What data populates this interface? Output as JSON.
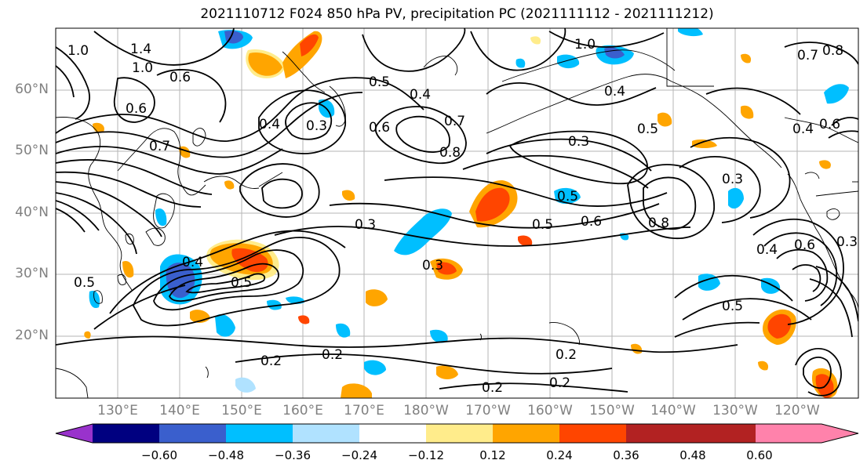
{
  "title": "2021110712 F024 850 hPa PV, precipitation PC (2021111112 - 2021111212)",
  "lat_labels": [
    "60°N",
    "50°N",
    "40°N",
    "30°N",
    "20°N"
  ],
  "lon_labels": [
    "130°E",
    "140°E",
    "150°E",
    "160°E",
    "170°E",
    "180°W",
    "170°W",
    "160°W",
    "150°W",
    "140°W",
    "130°W",
    "120°W"
  ],
  "contour_labels": [
    "1.0",
    "1.4",
    "1.0",
    "0.6",
    "0.6",
    "0.7",
    "0.4",
    "0.3",
    "0.5",
    "0.4",
    "0.6",
    "0.8",
    "0.7",
    "1.0",
    "0.4",
    "0.5",
    "0.3",
    "0.7",
    "0.4",
    "0.8",
    "0.6",
    "0.3",
    "0.5",
    "0.6",
    "0.8",
    "0.3",
    "0.3",
    "0.5",
    "0.5",
    "0.4",
    "0.6",
    "0.5",
    "0.2",
    "0.2",
    "0.2",
    "0.2",
    "0.5",
    "0.2",
    "0.4",
    "0.3"
  ],
  "colorbar": {
    "ticks": [
      "−0.60",
      "−0.48",
      "−0.36",
      "−0.24",
      "−0.12",
      "0.12",
      "0.24",
      "0.36",
      "0.48",
      "0.60"
    ],
    "colors": [
      "#9932cc",
      "#000080",
      "#3a5fcd",
      "#00bfff",
      "#b0e2ff",
      "#ffffff",
      "#ffec8b",
      "#ffa500",
      "#ff4500",
      "#b22222",
      "#ff82ab"
    ]
  }
}
